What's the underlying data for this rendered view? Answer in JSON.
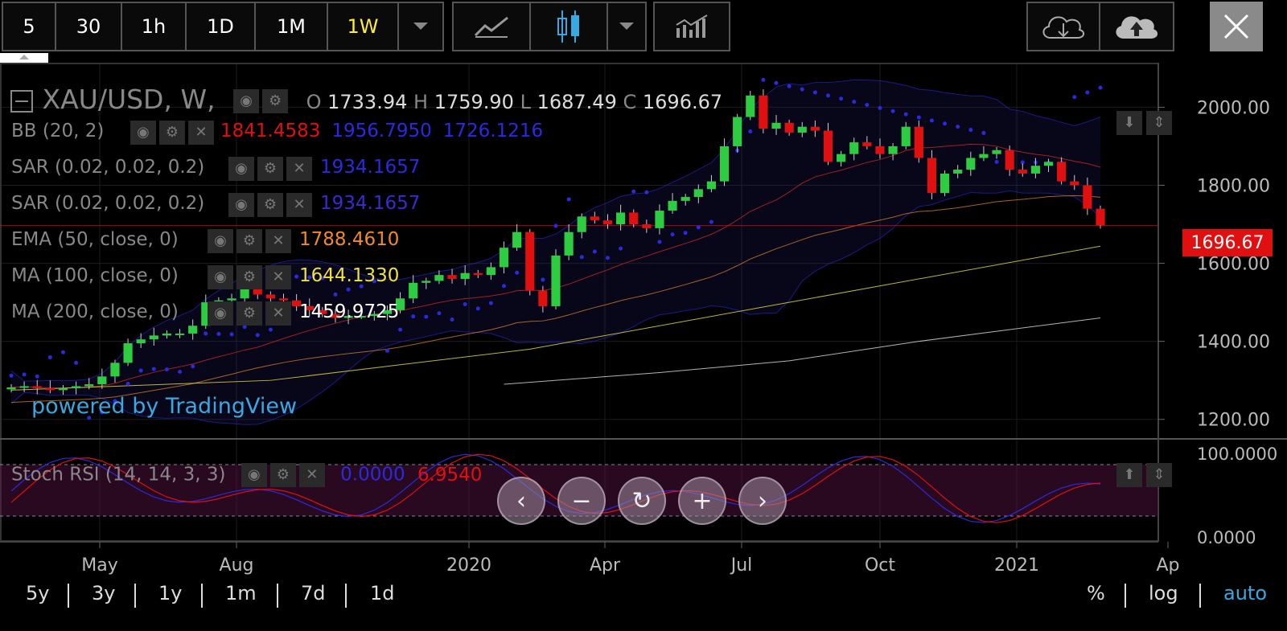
{
  "toolbar": {
    "intervals": [
      "5",
      "30",
      "1h",
      "1D",
      "1M",
      "1W"
    ],
    "active_interval": "1W"
  },
  "legend": {
    "symbol": "XAU/USD, W,",
    "ohlc": {
      "o_label": "O",
      "o": "1733.94",
      "h_label": "H",
      "h": "1759.90",
      "l_label": "L",
      "l": "1687.49",
      "c_label": "C",
      "c": "1696.67"
    },
    "studies": [
      {
        "label": "BB (20, 2)",
        "values": [
          "1841.4583",
          "1956.7950",
          "1726.1216"
        ],
        "colors": [
          "#e01010",
          "#2a2ae0",
          "#2a2ae0"
        ]
      },
      {
        "label": "SAR (0.02, 0.02, 0.2)",
        "values": [
          "1934.1657"
        ],
        "colors": [
          "#2a2ae0"
        ]
      },
      {
        "label": "SAR (0.02, 0.02, 0.2)",
        "values": [
          "1934.1657"
        ],
        "colors": [
          "#3a2ad0"
        ]
      },
      {
        "label": "EMA (50, close, 0)",
        "values": [
          "1788.4610"
        ],
        "colors": [
          "#f08a2a"
        ]
      },
      {
        "label": "MA (100, close, 0)",
        "values": [
          "1644.1330"
        ],
        "colors": [
          "#f0e040"
        ]
      },
      {
        "label": "MA (200, close, 0)",
        "values": [
          "1459.9725"
        ],
        "colors": [
          "#ffffff"
        ]
      }
    ],
    "stoch": {
      "label": "Stoch RSI (14, 14, 3, 3)",
      "values": [
        "0.0000",
        "6.9540"
      ],
      "colors": [
        "#2a2ae0",
        "#e01010"
      ]
    }
  },
  "watermark": "powered by TradingView",
  "price_axis": [
    "2000.00",
    "1800.00",
    "1600.00",
    "1400.00",
    "1200.00"
  ],
  "last_price": "1696.67",
  "stoch_axis": [
    "100.0000",
    "0.0000"
  ],
  "time_axis": [
    "May",
    "Aug",
    "2020",
    "Apr",
    "Jul",
    "Oct",
    "2021",
    "Ap"
  ],
  "ranges": [
    "5y",
    "3y",
    "1y",
    "1m",
    "7d",
    "1d"
  ],
  "scale_options": [
    "%",
    "log",
    "auto"
  ],
  "colors": {
    "up": "#2ecc40",
    "down": "#e01010",
    "bb": "#2a2ae0",
    "sar": "#2a2ae0",
    "ema": "#f08a2a",
    "ma100": "#f0e040",
    "ma200": "#ffffff",
    "active": "#ffeb3b",
    "auto": "#3ba7e0"
  },
  "icons": [
    "line-chart-icon",
    "candlestick-icon",
    "indicators-icon",
    "cloud-download-icon",
    "cloud-upload-icon",
    "close-icon"
  ],
  "chart_data": {
    "type": "candlestick",
    "symbol": "XAU/USD",
    "ylim": [
      1150,
      2110
    ],
    "approx_weekly_close": [
      1282,
      1285,
      1280,
      1275,
      1280,
      1285,
      1290,
      1310,
      1345,
      1395,
      1405,
      1415,
      1420,
      1420,
      1440,
      1500,
      1505,
      1510,
      1535,
      1520,
      1510,
      1505,
      1490,
      1480,
      1470,
      1460,
      1465,
      1465,
      1470,
      1480,
      1510,
      1550,
      1555,
      1570,
      1560,
      1575,
      1570,
      1590,
      1640,
      1680,
      1530,
      1490,
      1620,
      1680,
      1720,
      1710,
      1700,
      1730,
      1700,
      1690,
      1735,
      1760,
      1770,
      1790,
      1810,
      1900,
      1975,
      2030,
      1945,
      1960,
      1935,
      1950,
      1940,
      1860,
      1880,
      1910,
      1900,
      1880,
      1900,
      1950,
      1870,
      1780,
      1830,
      1840,
      1870,
      1880,
      1890,
      1840,
      1830,
      1850,
      1860,
      1810,
      1800,
      1740,
      1697
    ],
    "series": [
      {
        "name": "BB (20, 2)",
        "values": [
          1841.4583,
          1956.795,
          1726.1216
        ]
      },
      {
        "name": "SAR (0.02, 0.02, 0.2)",
        "values": [
          1934.1657
        ]
      },
      {
        "name": "EMA (50, close, 0)",
        "values": [
          1788.461
        ]
      },
      {
        "name": "MA (100, close, 0)",
        "values": [
          1644.133
        ]
      },
      {
        "name": "MA (200, close, 0)",
        "values": [
          1459.9725
        ]
      }
    ],
    "stoch_rsi": [
      0.0,
      6.954
    ]
  }
}
